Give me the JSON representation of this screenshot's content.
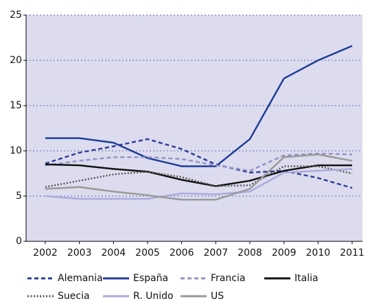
{
  "chart_data": {
    "type": "line",
    "categories": [
      "2002",
      "2003",
      "2004",
      "2005",
      "2006",
      "2007",
      "2008",
      "2009",
      "2010",
      "2011"
    ],
    "ylim": [
      0,
      25
    ],
    "yticks": [
      0,
      5,
      10,
      15,
      20,
      25
    ],
    "grid": true,
    "legend": "bottom",
    "background": "#dcdcee",
    "series": [
      {
        "name": "Alemania",
        "color": "#2e3f9a",
        "dash": "dashed",
        "values": [
          8.6,
          9.8,
          10.5,
          11.3,
          10.2,
          8.5,
          7.6,
          7.8,
          7.0,
          5.9
        ]
      },
      {
        "name": "España",
        "color": "#1f3d99",
        "dash": "solid",
        "values": [
          11.4,
          11.4,
          10.9,
          9.2,
          8.3,
          8.3,
          11.3,
          18.0,
          20.0,
          21.6
        ]
      },
      {
        "name": "Francia",
        "color": "#9393c8",
        "dash": "dashed",
        "values": [
          8.4,
          8.9,
          9.3,
          9.3,
          9.1,
          8.4,
          7.8,
          9.5,
          9.7,
          9.6
        ]
      },
      {
        "name": "Italia",
        "color": "#111111",
        "dash": "solid",
        "values": [
          8.5,
          8.4,
          8.0,
          7.7,
          6.8,
          6.1,
          6.7,
          7.8,
          8.4,
          8.4
        ]
      },
      {
        "name": "Suecia",
        "color": "#555555",
        "dash": "dotted",
        "values": [
          6.0,
          6.7,
          7.4,
          7.7,
          7.1,
          6.1,
          6.2,
          8.3,
          8.3,
          7.5
        ]
      },
      {
        "name": "R. Unido",
        "color": "#aaaadc",
        "dash": "solid",
        "values": [
          5.0,
          4.7,
          4.7,
          4.7,
          5.3,
          5.2,
          5.5,
          7.6,
          7.8,
          8.0
        ]
      },
      {
        "name": "US",
        "color": "#999999",
        "dash": "solid",
        "values": [
          5.8,
          6.0,
          5.5,
          5.1,
          4.6,
          4.6,
          5.8,
          9.3,
          9.6,
          8.9
        ]
      }
    ]
  }
}
